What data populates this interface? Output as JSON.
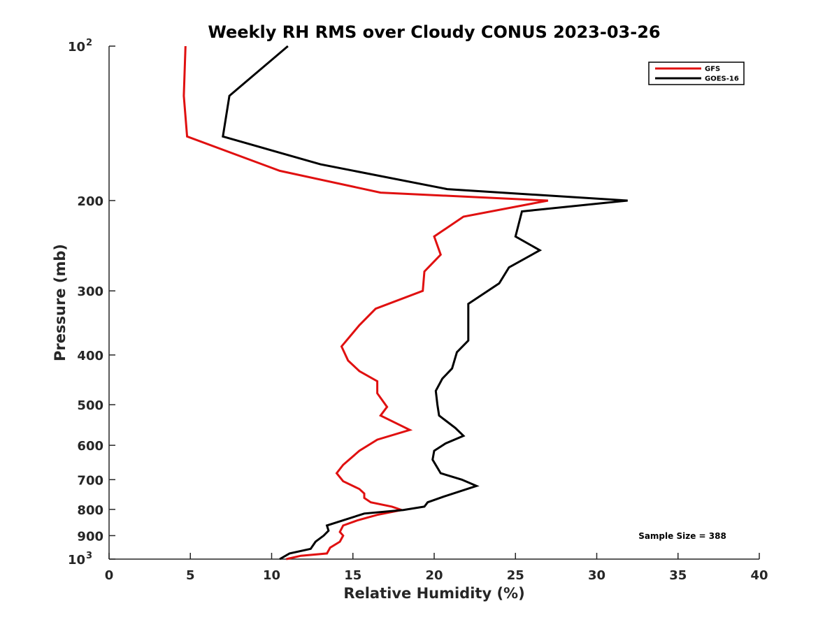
{
  "chart_data": {
    "type": "line",
    "title": "Weekly RH RMS over Cloudy CONUS 2023-03-26",
    "xlabel": "Relative Humidity (%)",
    "ylabel": "Pressure (mb)",
    "xlim": [
      0,
      40
    ],
    "ylim": [
      100,
      1000
    ],
    "y_scale": "log",
    "y_reversed": true,
    "x_ticks": [
      0,
      5,
      10,
      15,
      20,
      25,
      30,
      35,
      40
    ],
    "y_ticks": [
      {
        "value": 100,
        "label": "10",
        "sup": "2"
      },
      {
        "value": 200,
        "label": "200"
      },
      {
        "value": 300,
        "label": "300"
      },
      {
        "value": 400,
        "label": "400"
      },
      {
        "value": 500,
        "label": "500"
      },
      {
        "value": 600,
        "label": "600"
      },
      {
        "value": 700,
        "label": "700"
      },
      {
        "value": 800,
        "label": "800"
      },
      {
        "value": 900,
        "label": "900"
      },
      {
        "value": 1000,
        "label": "10",
        "sup": "3"
      }
    ],
    "legend_position": "top-right",
    "grid": false,
    "annotation": "Sample Size = 388",
    "series": [
      {
        "name": "GFS",
        "color": "#e01010",
        "points": [
          [
            4.7,
            100
          ],
          [
            4.6,
            125
          ],
          [
            4.8,
            150
          ],
          [
            10.5,
            175
          ],
          [
            16.7,
            193
          ],
          [
            27.0,
            200
          ],
          [
            21.8,
            215
          ],
          [
            20.0,
            235
          ],
          [
            20.4,
            255
          ],
          [
            19.4,
            275
          ],
          [
            19.3,
            300
          ],
          [
            16.4,
            325
          ],
          [
            15.4,
            350
          ],
          [
            14.3,
            385
          ],
          [
            14.7,
            410
          ],
          [
            15.4,
            430
          ],
          [
            16.5,
            450
          ],
          [
            16.5,
            475
          ],
          [
            17.1,
            505
          ],
          [
            16.7,
            525
          ],
          [
            18.5,
            560
          ],
          [
            16.5,
            585
          ],
          [
            15.4,
            615
          ],
          [
            14.4,
            655
          ],
          [
            14.0,
            680
          ],
          [
            14.4,
            705
          ],
          [
            15.4,
            730
          ],
          [
            15.7,
            745
          ],
          [
            15.7,
            760
          ],
          [
            16.1,
            775
          ],
          [
            17.4,
            790
          ],
          [
            18.0,
            802
          ],
          [
            16.5,
            820
          ],
          [
            15.3,
            840
          ],
          [
            14.4,
            860
          ],
          [
            14.2,
            885
          ],
          [
            14.4,
            900
          ],
          [
            14.2,
            925
          ],
          [
            13.6,
            950
          ],
          [
            13.4,
            975
          ],
          [
            11.8,
            985
          ],
          [
            10.9,
            1000
          ]
        ]
      },
      {
        "name": "GOES-16",
        "color": "#000000",
        "points": [
          [
            11.0,
            100
          ],
          [
            7.4,
            125
          ],
          [
            7.0,
            150
          ],
          [
            13.0,
            170
          ],
          [
            20.8,
            190
          ],
          [
            31.9,
            200
          ],
          [
            25.4,
            210
          ],
          [
            25.0,
            235
          ],
          [
            26.5,
            250
          ],
          [
            24.6,
            270
          ],
          [
            24.0,
            290
          ],
          [
            22.1,
            318
          ],
          [
            22.1,
            345
          ],
          [
            22.1,
            375
          ],
          [
            21.4,
            395
          ],
          [
            21.1,
            425
          ],
          [
            20.5,
            445
          ],
          [
            20.1,
            470
          ],
          [
            20.2,
            500
          ],
          [
            20.3,
            525
          ],
          [
            21.3,
            555
          ],
          [
            21.8,
            575
          ],
          [
            20.7,
            595
          ],
          [
            20.0,
            615
          ],
          [
            19.9,
            640
          ],
          [
            20.4,
            680
          ],
          [
            21.7,
            700
          ],
          [
            22.6,
            720
          ],
          [
            20.6,
            755
          ],
          [
            19.6,
            775
          ],
          [
            19.4,
            790
          ],
          [
            18.1,
            802
          ],
          [
            15.7,
            815
          ],
          [
            13.9,
            850
          ],
          [
            13.4,
            860
          ],
          [
            13.5,
            880
          ],
          [
            13.2,
            900
          ],
          [
            12.7,
            925
          ],
          [
            12.4,
            955
          ],
          [
            11.1,
            975
          ],
          [
            10.5,
            1000
          ]
        ]
      }
    ]
  }
}
